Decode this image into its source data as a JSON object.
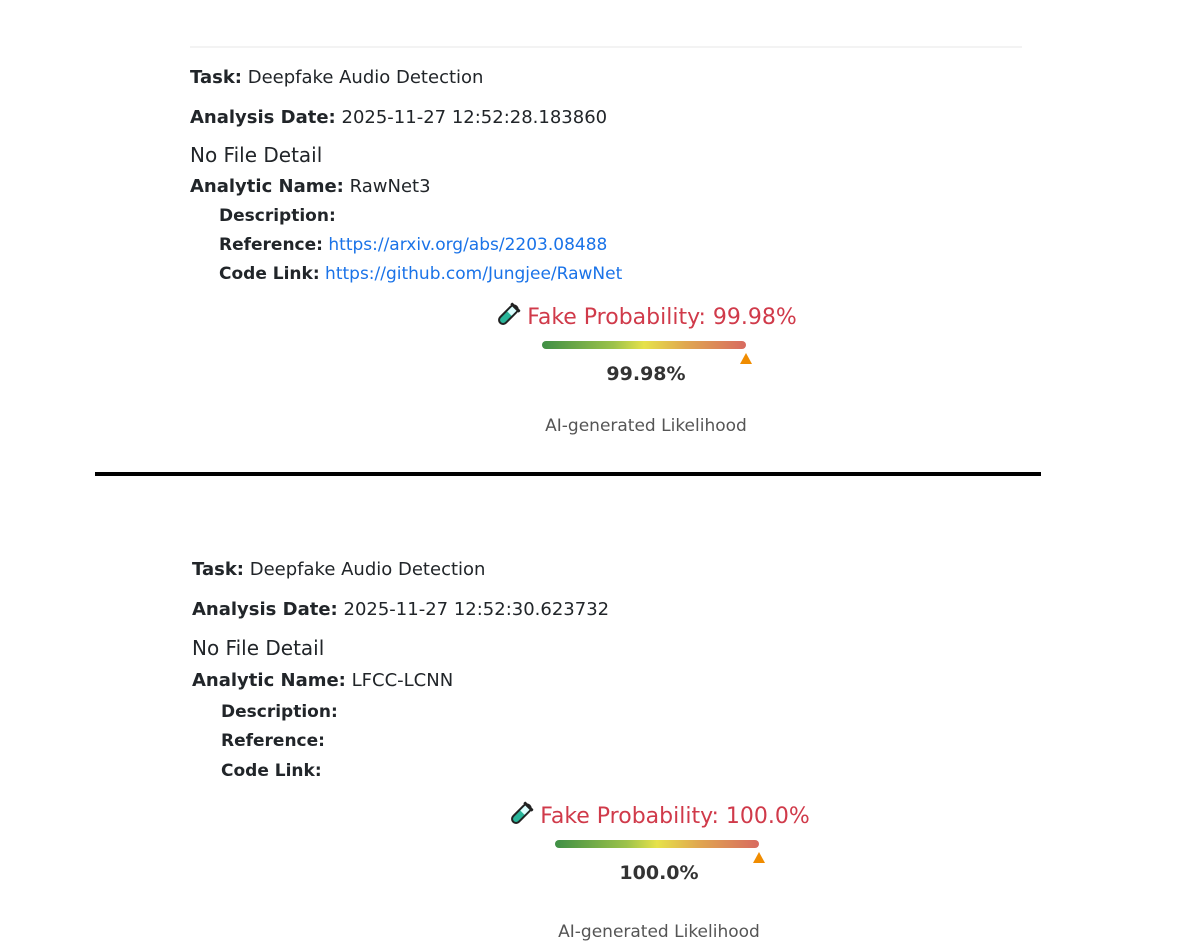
{
  "labels": {
    "task": "Task:",
    "date": "Analysis Date:",
    "analytic": "Analytic Name:",
    "description": "Description:",
    "reference": "Reference:",
    "code": "Code Link:",
    "caption": "AI-generated Likelihood"
  },
  "colors": {
    "title": "#d03a4a",
    "link": "#1a73e8",
    "marker": "#f08c00"
  },
  "records": [
    {
      "task": "Deepfake Audio Detection",
      "date": "2025-11-27 12:52:28.183860",
      "file": "No File Detail",
      "analytic": "RawNet3",
      "description": "",
      "reference": "https://arxiv.org/abs/2203.08488",
      "code": "https://github.com/Jungjee/RawNet",
      "icon": "test-tube-icon",
      "title": "Fake Probability: 99.98%",
      "value": "99.98%",
      "probability": 99.98
    },
    {
      "task": "Deepfake Audio Detection",
      "date": "2025-11-27 12:52:30.623732",
      "file": "No File Detail",
      "analytic": "LFCC-LCNN",
      "description": "",
      "reference": "",
      "code": "",
      "icon": "test-tube-icon",
      "title": "Fake Probability: 100.0%",
      "value": "100.0%",
      "probability": 100.0
    }
  ]
}
